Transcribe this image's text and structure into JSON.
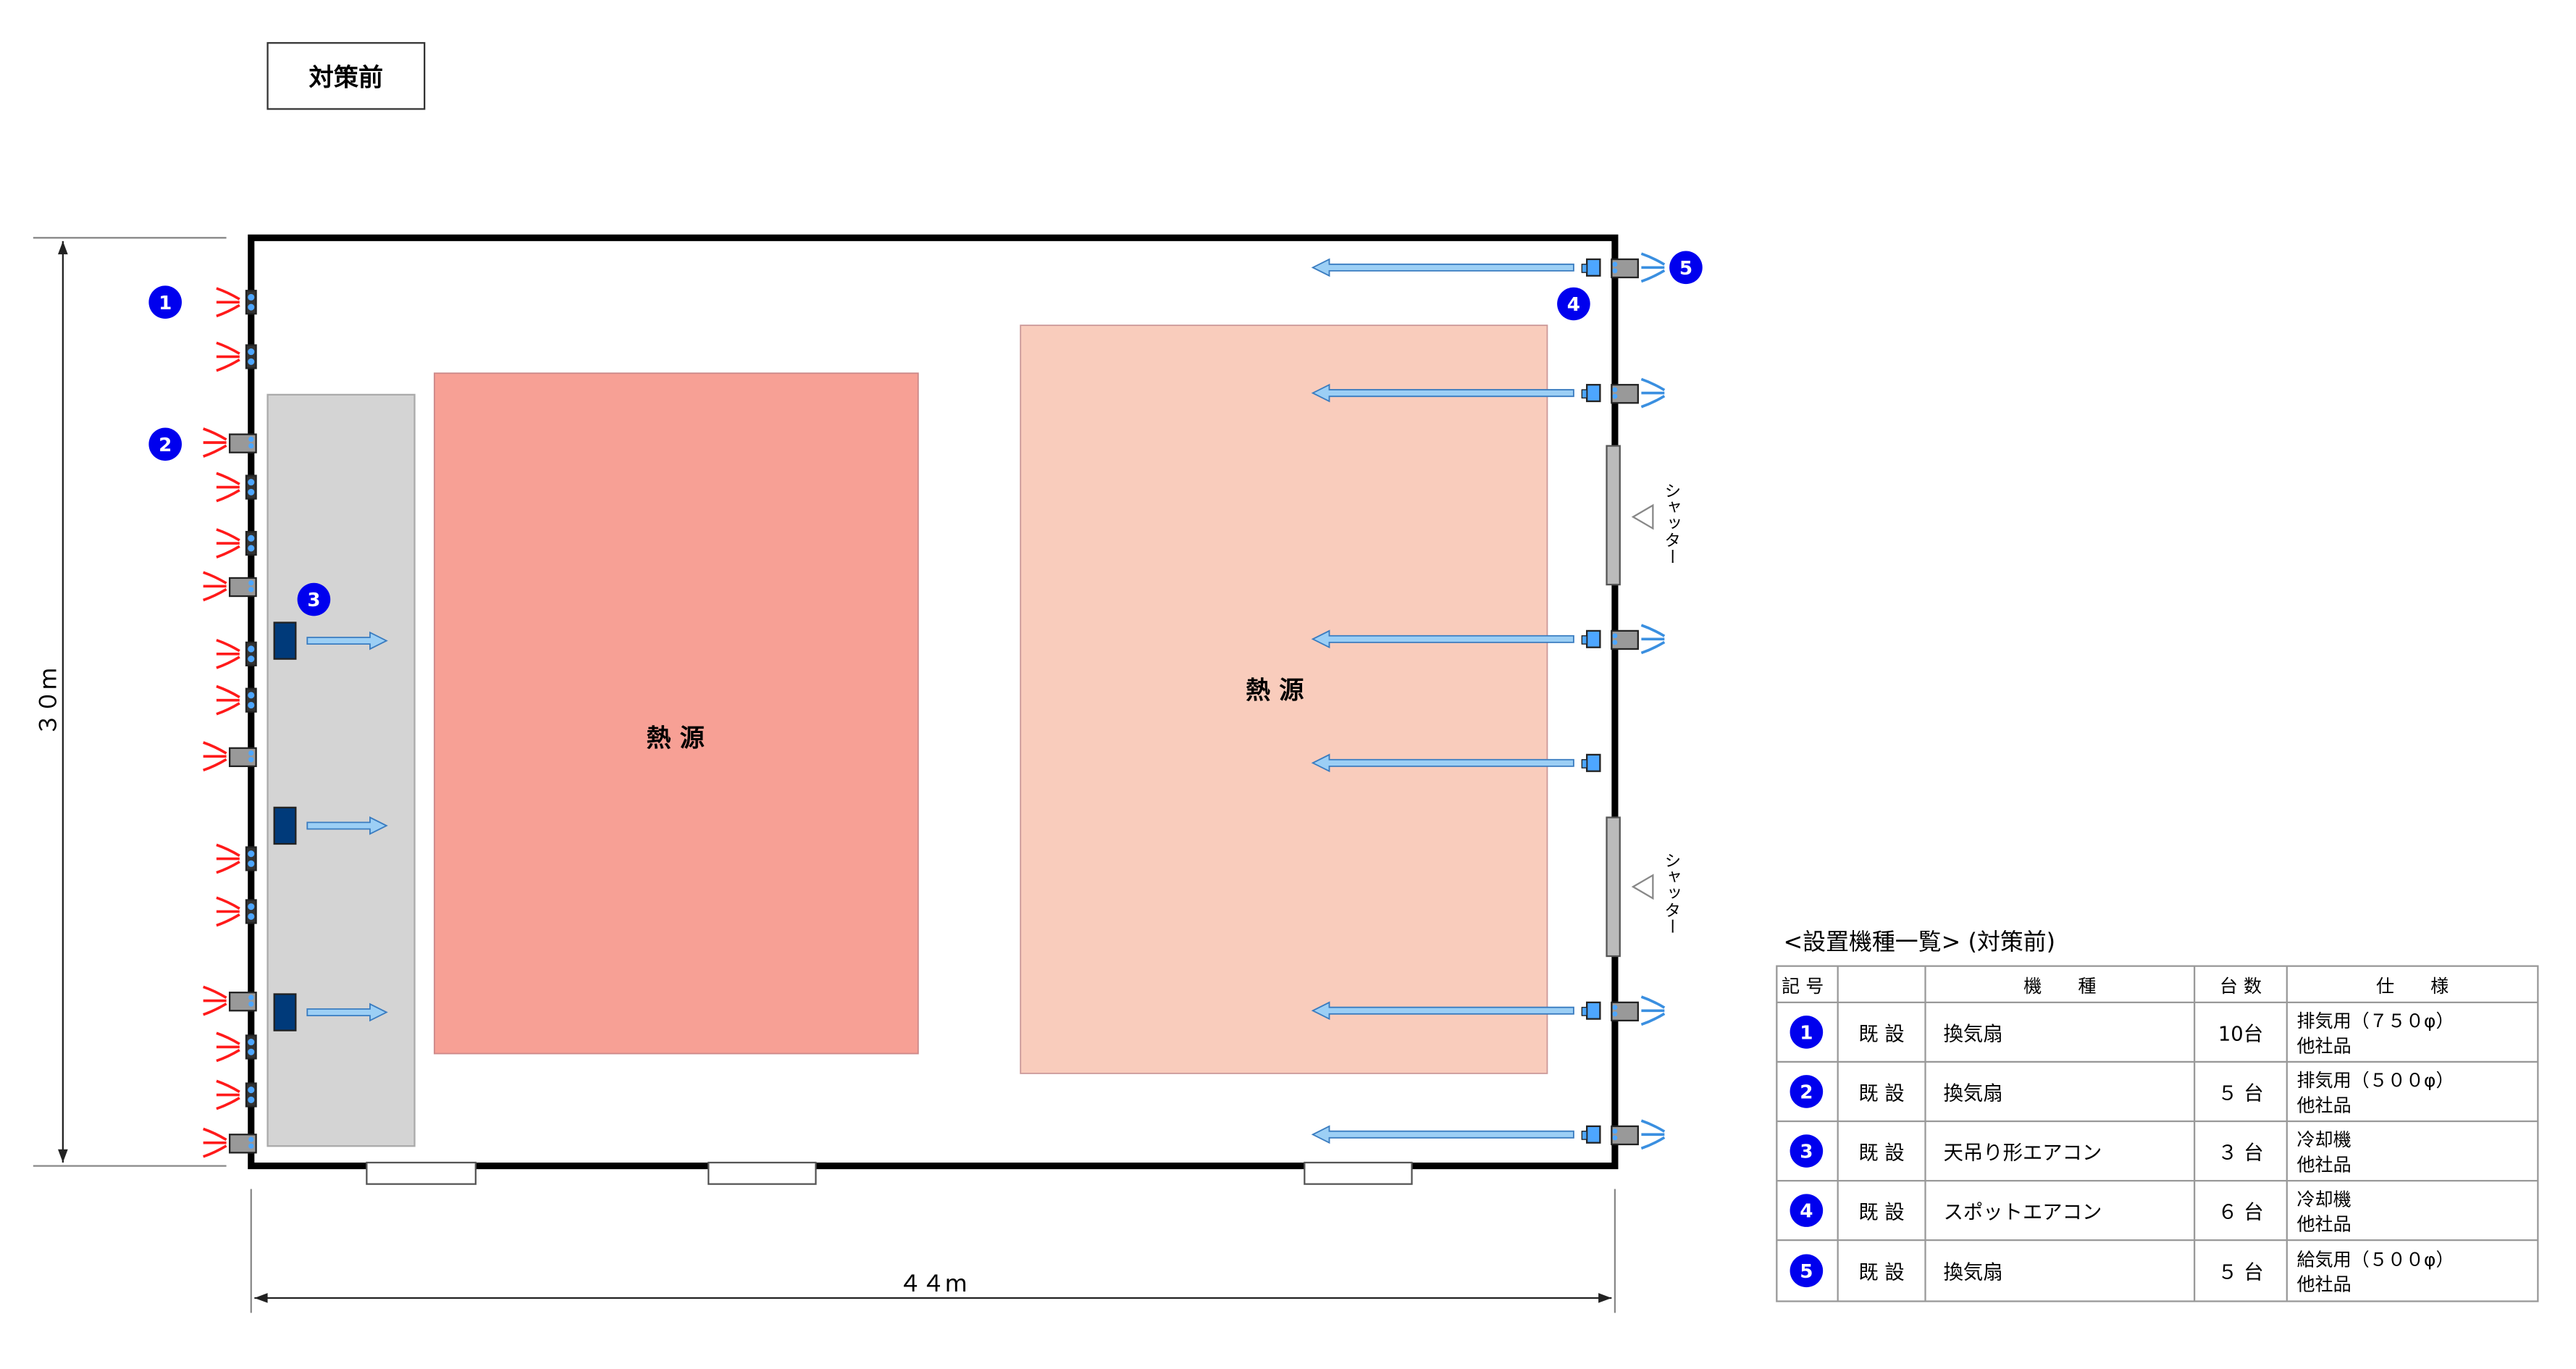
{
  "title": "対策前",
  "heat_source_label": "熱 源",
  "shutter_label": "シャッター",
  "dimension_height": "３０m",
  "dimension_width": "４４m",
  "colors": {
    "badge": "#0000ee",
    "heat_source_1": "#f7a095",
    "heat_source_2": "#f9ccbc",
    "zone": "#d4d4d4",
    "aircon": "#003a7a",
    "spot_aircon": "#4da6ff",
    "arrow": "#9ccff5",
    "exhaust": "#ff1a1a",
    "supply": "#3a8fe0"
  },
  "table": {
    "title": "<設置機種一覧> (対策前)",
    "headers": [
      "記 号",
      "",
      "機　　種",
      "台 数",
      "仕　　様"
    ],
    "rows": [
      {
        "no": "1",
        "status": "既 設",
        "type": "換気扇",
        "count": "10台",
        "spec1": "排気用（７５０φ）",
        "spec2": "他社品"
      },
      {
        "no": "2",
        "status": "既 設",
        "type": "換気扇",
        "count": "５ 台",
        "spec1": "排気用（５００φ）",
        "spec2": "他社品"
      },
      {
        "no": "3",
        "status": "既 設",
        "type": "天吊り形エアコン",
        "count": "３ 台",
        "spec1": "冷却機",
        "spec2": "他社品"
      },
      {
        "no": "4",
        "status": "既 設",
        "type": "スポットエアコン",
        "count": "６ 台",
        "spec1": "冷却機",
        "spec2": "他社品"
      },
      {
        "no": "5",
        "status": "既 設",
        "type": "換気扇",
        "count": "５ 台",
        "spec1": "給気用（５００φ）",
        "spec2": "他社品"
      }
    ]
  }
}
